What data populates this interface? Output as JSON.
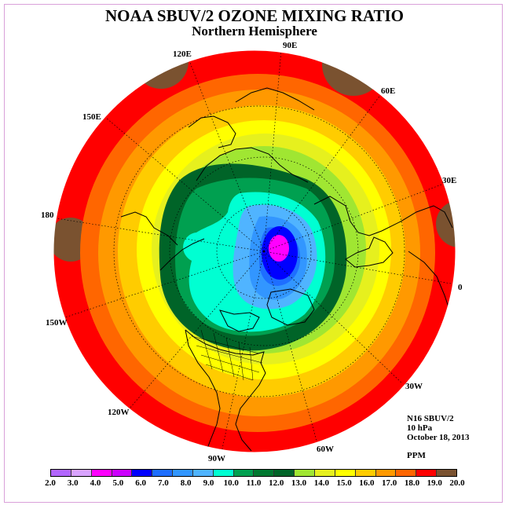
{
  "header": {
    "title": "NOAA SBUV/2 OZONE MIXING RATIO",
    "subtitle": "Northern Hemisphere"
  },
  "longitude_labels": [
    "90E",
    "60E",
    "30E",
    "0",
    "30W",
    "60W",
    "90W",
    "120W",
    "150W",
    "180",
    "150E",
    "120E"
  ],
  "info": {
    "instrument": "N16 SBUV/2",
    "pressure": "10 hPa",
    "date": "October 18, 2013",
    "units": "PPM"
  },
  "colorbar": {
    "ticks": [
      "2.0",
      "3.0",
      "4.0",
      "5.0",
      "6.0",
      "7.0",
      "8.0",
      "9.0",
      "10.0",
      "11.0",
      "12.0",
      "13.0",
      "14.0",
      "15.0",
      "16.0",
      "17.0",
      "18.0",
      "19.0",
      "20.0"
    ],
    "colors": [
      "#b266ff",
      "#d9a3ff",
      "#ff00ff",
      "#cc00ff",
      "#0000ff",
      "#1e6eff",
      "#3296ff",
      "#50b4ff",
      "#00ffd2",
      "#00a050",
      "#007830",
      "#006428",
      "#a0e632",
      "#e6f01e",
      "#ffff00",
      "#ffcc00",
      "#ff9900",
      "#ff6600",
      "#ff0000",
      "#7a5230"
    ]
  },
  "map_colors": {
    "outer_brown": "#7a5230",
    "red": "#ff0000",
    "orange_red": "#ff6600",
    "orange": "#ff9900",
    "amber": "#ffcc00",
    "yellow": "#ffff00",
    "yellow_green": "#e6f01e",
    "light_green": "#a0e632",
    "green": "#00a050",
    "dark_green": "#007830",
    "cyan": "#00ffd2",
    "light_blue": "#50b4ff",
    "blue": "#3296ff",
    "mid_blue": "#1e6eff",
    "deep_blue": "#0000ff",
    "magenta": "#ff00ff",
    "coastline": "#000000"
  }
}
